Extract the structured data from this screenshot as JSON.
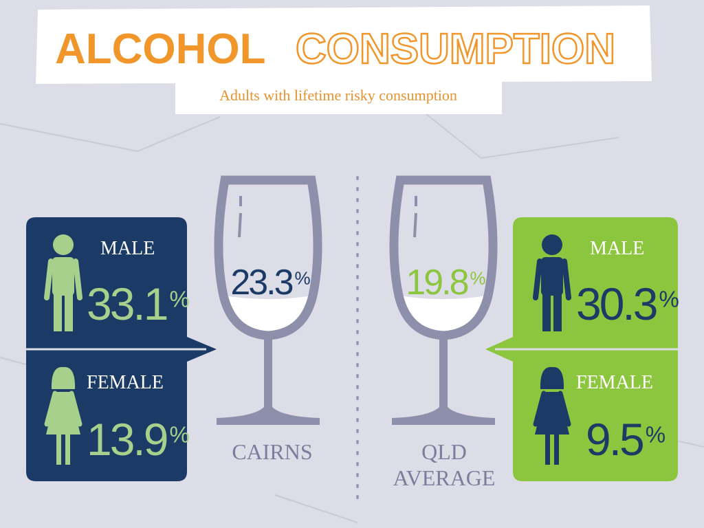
{
  "header": {
    "title_bold": "ALCOHOL",
    "title_outline": "CONSUMPTION",
    "subtitle": "Adults with lifetime risky consumption"
  },
  "regions": [
    {
      "name": [
        "CAIRNS"
      ],
      "overall": {
        "number": "23.3",
        "unit": "%"
      },
      "male": {
        "label": "MALE",
        "number": "33.1",
        "unit": "%"
      },
      "female": {
        "label": "FEMALE",
        "number": "13.9",
        "unit": "%"
      }
    },
    {
      "name": [
        "QLD",
        "AVERAGE"
      ],
      "overall": {
        "number": "19.8",
        "unit": "%"
      },
      "male": {
        "label": "MALE",
        "number": "30.3",
        "unit": "%"
      },
      "female": {
        "label": "FEMALE",
        "number": "9.5",
        "unit": "%"
      }
    }
  ]
}
